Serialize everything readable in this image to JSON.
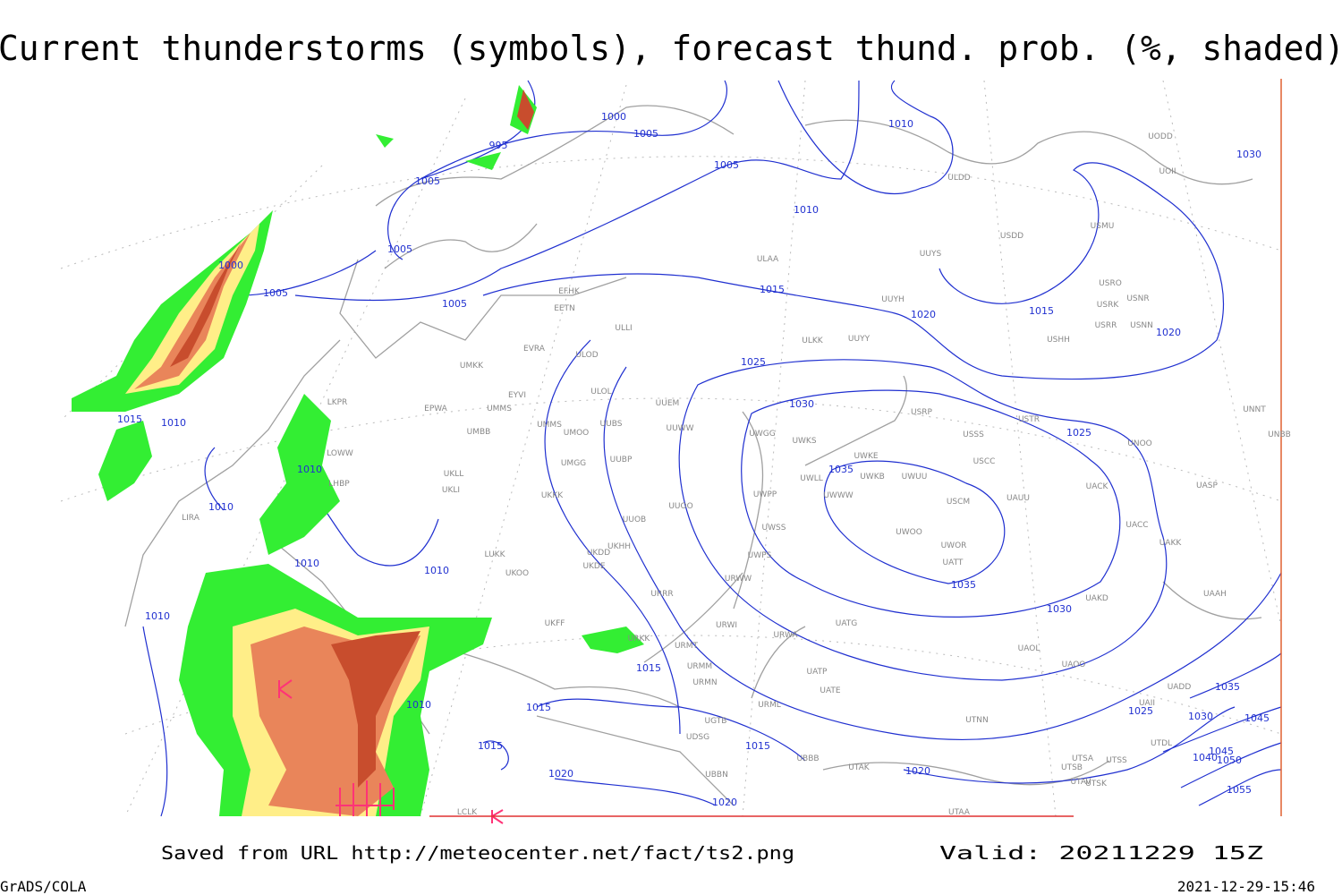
{
  "header": {
    "title": "Current thunderstorms (symbols), forecast thund. prob. (%, shaded)"
  },
  "map": {
    "isobar_labels": [
      1000,
      1005,
      995,
      1005,
      1005,
      1000,
      1005,
      1005,
      1005,
      1010,
      1010,
      1015,
      1020,
      1015,
      1020,
      1025,
      1030,
      1025,
      1030,
      1035,
      1035,
      1030,
      1015,
      1010,
      1010,
      1010,
      1010,
      1010,
      1010,
      1010,
      1015,
      1015,
      1015,
      1015,
      1020,
      1020,
      1020,
      1025,
      1030,
      1035,
      1045,
      1045,
      1040,
      1050,
      1055
    ],
    "station_labels": [
      "ULAA",
      "UUYH",
      "ULKK",
      "UUYY",
      "EFHK",
      "EETN",
      "ULLI",
      "EVRA",
      "ULOD",
      "UMKK",
      "EYVI",
      "ULOL",
      "UUEM",
      "EPWA",
      "UMMS",
      "UMMS",
      "UMOO",
      "UUBS",
      "UUWW",
      "UMBB",
      "UWGG",
      "UWKS",
      "UWKE",
      "UWUU",
      "USCM",
      "UAUU",
      "UWOO",
      "UWOR",
      "UATT",
      "UACC",
      "UAKK",
      "UASP",
      "UNOO",
      "UNBB",
      "UNNT",
      "USTR",
      "USRP",
      "USSS",
      "USCC",
      "UAOO",
      "UAOL",
      "UATG",
      "UATE",
      "UATP",
      "URWA",
      "URWI",
      "URMT",
      "URMM",
      "URMN",
      "URML",
      "UTNN",
      "UTAK",
      "UTSA",
      "UTSS",
      "UTSB",
      "UTAV",
      "UTSK",
      "UTAA",
      "UDSG",
      "UBBB",
      "UBBN",
      "UGTB",
      "LCLK",
      "LIRA",
      "LKPR",
      "LOWW",
      "LHBP",
      "UKKK",
      "UKLL",
      "UKLI",
      "LUKK",
      "UKOO",
      "UKHH",
      "UKDD",
      "UKDE",
      "UKFF",
      "URKK",
      "URRR",
      "UUOO",
      "UUOB",
      "UUBP",
      "UMGG",
      "USDD",
      "USMU",
      "ULDD",
      "UUYS",
      "USRO",
      "USRK",
      "USNR",
      "USRR",
      "USNN",
      "USHH",
      "UODD",
      "UOII",
      "UWPP",
      "UWWW",
      "UWLL",
      "UWKB",
      "UWSS",
      "URWW",
      "UWPS",
      "UACK",
      "UAKD",
      "UAAH",
      "UADD",
      "UAII",
      "UTDL"
    ]
  },
  "footer": {
    "source": "Saved from URL http://meteocenter.net/fact/ts2.png",
    "valid": "Valid: 20211229 15Z",
    "software": "GrADS/COLA",
    "timestamp": "2021-12-29-15:46"
  }
}
